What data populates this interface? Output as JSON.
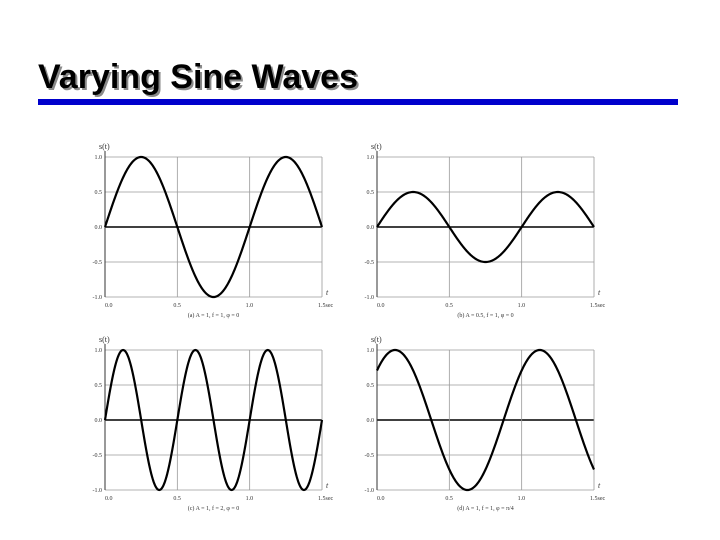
{
  "slide": {
    "title": "Varying Sine Waves",
    "accent_color": "#0000cc"
  },
  "chart_data": [
    {
      "type": "line",
      "amplitude": 1,
      "frequency": 1,
      "phase": 0,
      "ylabel": "s(t)",
      "xlabel": "t",
      "xlim": [
        0,
        1.5
      ],
      "ylim": [
        -1,
        1
      ],
      "x_ticks": [
        "0.0",
        "0.5",
        "1.0",
        "1.5sec"
      ],
      "y_ticks": [
        "1.0",
        "0.5",
        "0.0",
        "-0.5",
        "-1.0"
      ],
      "caption": "(a) A = 1, f = 1, φ = 0",
      "grid": true
    },
    {
      "type": "line",
      "amplitude": 0.5,
      "frequency": 1,
      "phase": 0,
      "ylabel": "s(t)",
      "xlabel": "t",
      "xlim": [
        0,
        1.5
      ],
      "ylim": [
        -1,
        1
      ],
      "x_ticks": [
        "0.0",
        "0.5",
        "1.0",
        "1.5sec"
      ],
      "y_ticks": [
        "1.0",
        "0.5",
        "0.0",
        "-0.5",
        "-1.0"
      ],
      "caption": "(b) A = 0.5, f = 1, φ = 0",
      "grid": true
    },
    {
      "type": "line",
      "amplitude": 1,
      "frequency": 2,
      "phase": 0,
      "ylabel": "s(t)",
      "xlabel": "t",
      "xlim": [
        0,
        1.5
      ],
      "ylim": [
        -1,
        1
      ],
      "x_ticks": [
        "0.0",
        "0.5",
        "1.0",
        "1.5sec"
      ],
      "y_ticks": [
        "1.0",
        "0.5",
        "0.0",
        "-0.5",
        "-1.0"
      ],
      "caption": "(c) A = 1, f = 2, φ = 0",
      "grid": true
    },
    {
      "type": "line",
      "amplitude": 1,
      "frequency": 1,
      "phase": 0.7854,
      "ylabel": "s(t)",
      "xlabel": "t",
      "xlim": [
        0,
        1.5
      ],
      "ylim": [
        -1,
        1
      ],
      "x_ticks": [
        "0.0",
        "0.5",
        "1.0",
        "1.5sec"
      ],
      "y_ticks": [
        "1.0",
        "0.5",
        "0.0",
        "-0.5",
        "-1.0"
      ],
      "caption": "(d) A = 1, f = 1, φ = π/4",
      "grid": true
    }
  ]
}
